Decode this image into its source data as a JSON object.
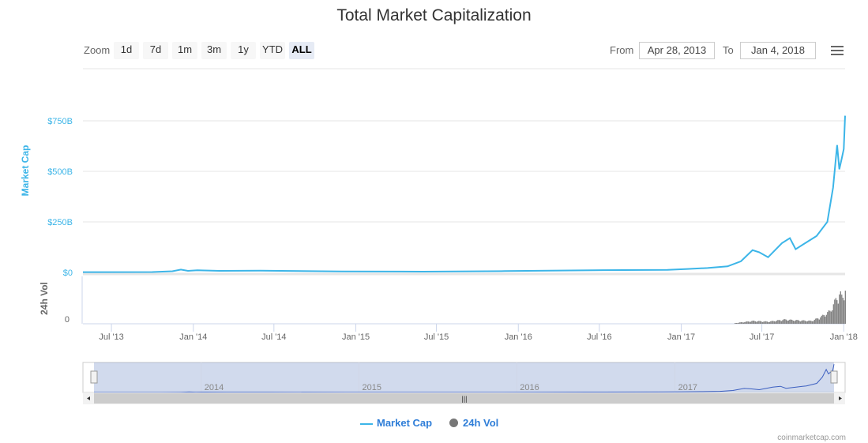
{
  "title": "Total Market Capitalization",
  "zoom": {
    "label": "Zoom",
    "buttons": [
      "1d",
      "7d",
      "1m",
      "3m",
      "1y",
      "YTD",
      "ALL"
    ],
    "selected": "ALL"
  },
  "range": {
    "from_label": "From",
    "from": "Apr 28, 2013",
    "to_label": "To",
    "to": "Jan 4, 2018"
  },
  "legend": [
    {
      "name": "Market Cap",
      "color": "#3cb5e8"
    },
    {
      "name": "24h Vol",
      "color": "#777777"
    }
  ],
  "credit": "coinmarketcap.com",
  "colors": {
    "line": "#3cb5e8",
    "volume": "#777777",
    "navigator": "#3c5fc0"
  },
  "chart_data": {
    "type": "line",
    "title": "Total Market Capitalization",
    "ylabel": "Market Cap",
    "ylabel2": "24h Vol",
    "yticks": [
      "$0",
      "$250B",
      "$500B",
      "$750B"
    ],
    "ytick_values": [
      0,
      250,
      500,
      750
    ],
    "yticks2": [
      "0"
    ],
    "xticks": [
      "Jul '13",
      "Jan '14",
      "Jul '14",
      "Jan '15",
      "Jul '15",
      "Jan '16",
      "Jul '16",
      "Jan '17",
      "Jul '17",
      "Jan '18"
    ],
    "xtick_dates": [
      "2013-07-01",
      "2014-01-01",
      "2014-07-01",
      "2015-01-01",
      "2015-07-01",
      "2016-01-01",
      "2016-07-01",
      "2017-01-01",
      "2017-07-01",
      "2018-01-01"
    ],
    "navigator_labels": [
      "2014",
      "2015",
      "2016",
      "2017"
    ],
    "navigator_dates": [
      "2014-01-01",
      "2015-01-01",
      "2016-01-01",
      "2017-01-01"
    ],
    "xrange": [
      "2013-04-28",
      "2018-01-04"
    ],
    "ylim": [
      0,
      780
    ],
    "market_cap_billions": [
      [
        "2013-04-28",
        1.5
      ],
      [
        "2013-10-01",
        2
      ],
      [
        "2013-11-15",
        6
      ],
      [
        "2013-12-04",
        14
      ],
      [
        "2013-12-20",
        8
      ],
      [
        "2014-01-10",
        11
      ],
      [
        "2014-03-01",
        8
      ],
      [
        "2014-06-01",
        9
      ],
      [
        "2014-12-01",
        5
      ],
      [
        "2015-06-01",
        4
      ],
      [
        "2015-12-01",
        6.5
      ],
      [
        "2016-06-15",
        11
      ],
      [
        "2016-12-01",
        13
      ],
      [
        "2017-01-15",
        17
      ],
      [
        "2017-03-01",
        22
      ],
      [
        "2017-04-15",
        30
      ],
      [
        "2017-05-15",
        55
      ],
      [
        "2017-06-10",
        110
      ],
      [
        "2017-06-25",
        100
      ],
      [
        "2017-07-15",
        75
      ],
      [
        "2017-08-15",
        145
      ],
      [
        "2017-09-02",
        170
      ],
      [
        "2017-09-15",
        115
      ],
      [
        "2017-10-10",
        150
      ],
      [
        "2017-11-01",
        180
      ],
      [
        "2017-11-25",
        250
      ],
      [
        "2017-12-08",
        420
      ],
      [
        "2017-12-17",
        630
      ],
      [
        "2017-12-22",
        510
      ],
      [
        "2017-12-28",
        570
      ],
      [
        "2018-01-01",
        610
      ],
      [
        "2018-01-04",
        775
      ]
    ],
    "volume_billions": [
      [
        "2017-05-01",
        1
      ],
      [
        "2017-06-10",
        4
      ],
      [
        "2017-07-15",
        3
      ],
      [
        "2017-08-20",
        6
      ],
      [
        "2017-09-15",
        5
      ],
      [
        "2017-10-20",
        4
      ],
      [
        "2017-11-10",
        10
      ],
      [
        "2017-11-30",
        18
      ],
      [
        "2017-12-10",
        30
      ],
      [
        "2017-12-22",
        45
      ],
      [
        "2017-12-28",
        35
      ],
      [
        "2018-01-04",
        55
      ]
    ],
    "volume_max": 55
  }
}
